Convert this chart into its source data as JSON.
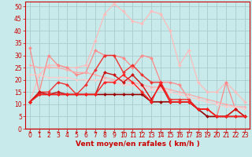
{
  "xlabel": "Vent moyen/en rafales ( km/h )",
  "background_color": "#c8eaea",
  "grid_color": "#aacccc",
  "x_values": [
    0,
    1,
    2,
    3,
    4,
    5,
    6,
    7,
    8,
    9,
    10,
    11,
    12,
    13,
    14,
    15,
    16,
    17,
    18,
    19,
    20,
    21,
    22,
    23
  ],
  "series": [
    {
      "y": [
        11,
        22,
        26,
        26,
        25,
        25,
        26,
        36,
        47,
        51,
        48,
        44,
        43,
        48,
        47,
        40,
        26,
        32,
        19,
        15,
        15,
        19,
        15,
        11
      ],
      "color": "#ffbbbb",
      "lw": 0.9,
      "marker": "D",
      "ms": 2.0
    },
    {
      "y": [
        33,
        15,
        30,
        26,
        25,
        22,
        23,
        32,
        30,
        30,
        29,
        25,
        30,
        29,
        19,
        19,
        18,
        12,
        8,
        8,
        5,
        19,
        8,
        5
      ],
      "color": "#ff8888",
      "lw": 0.9,
      "marker": "D",
      "ms": 2.0
    },
    {
      "y": [
        26,
        25,
        25,
        25,
        24,
        23,
        23,
        22,
        21,
        20,
        20,
        19,
        18,
        17,
        17,
        16,
        15,
        14,
        13,
        12,
        11,
        10,
        9,
        9
      ],
      "color": "#ffaaaa",
      "lw": 0.9,
      "marker": "D",
      "ms": 1.5
    },
    {
      "y": [
        22,
        22,
        21,
        21,
        21,
        20,
        20,
        20,
        20,
        19,
        18,
        18,
        17,
        16,
        16,
        15,
        14,
        13,
        12,
        11,
        10,
        9,
        9,
        8
      ],
      "color": "#ffcccc",
      "lw": 0.9,
      "marker": "D",
      "ms": 1.5
    },
    {
      "y": [
        11,
        15,
        15,
        19,
        18,
        14,
        18,
        24,
        30,
        30,
        23,
        26,
        22,
        19,
        19,
        12,
        12,
        12,
        8,
        8,
        5,
        5,
        8,
        5
      ],
      "color": "#ee3333",
      "lw": 1.0,
      "marker": "D",
      "ms": 2.0
    },
    {
      "y": [
        11,
        15,
        14,
        15,
        14,
        14,
        14,
        14,
        23,
        22,
        19,
        22,
        18,
        12,
        18,
        11,
        11,
        11,
        8,
        8,
        5,
        5,
        8,
        5
      ],
      "color": "#cc1111",
      "lw": 1.0,
      "marker": "D",
      "ms": 2.0
    },
    {
      "y": [
        11,
        14,
        14,
        14,
        14,
        14,
        14,
        14,
        14,
        14,
        14,
        14,
        14,
        11,
        11,
        11,
        11,
        11,
        8,
        5,
        5,
        5,
        5,
        5
      ],
      "color": "#990000",
      "lw": 1.2,
      "marker": "D",
      "ms": 2.0
    },
    {
      "y": [
        11,
        14,
        14,
        14,
        14,
        14,
        14,
        14,
        19,
        19,
        22,
        19,
        15,
        11,
        19,
        11,
        11,
        11,
        8,
        8,
        5,
        5,
        5,
        5
      ],
      "color": "#ff2222",
      "lw": 1.0,
      "marker": "D",
      "ms": 2.0
    }
  ],
  "ylim": [
    0,
    52
  ],
  "xlim": [
    -0.5,
    23.5
  ],
  "yticks": [
    0,
    5,
    10,
    15,
    20,
    25,
    30,
    35,
    40,
    45,
    50
  ],
  "xticks": [
    0,
    1,
    2,
    3,
    4,
    5,
    6,
    7,
    8,
    9,
    10,
    11,
    12,
    13,
    14,
    15,
    16,
    17,
    18,
    19,
    20,
    21,
    22,
    23
  ],
  "tick_color": "#cc0000",
  "label_color": "#cc0000",
  "spine_color": "#cc0000",
  "xlabel_fontsize": 6.5,
  "tick_fontsize": 5.5
}
